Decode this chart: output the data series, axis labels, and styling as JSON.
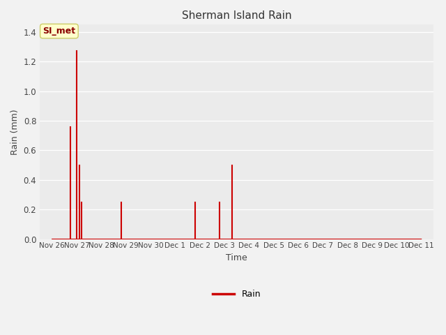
{
  "title": "Sherman Island Rain",
  "xlabel": "Time",
  "ylabel": "Rain (mm)",
  "legend_label": "Rain",
  "line_color": "#cc0000",
  "fig_bg_color": "#f2f2f2",
  "plot_bg_color": "#ebebeb",
  "ylim": [
    0,
    1.45
  ],
  "yticks": [
    0.0,
    0.2,
    0.4,
    0.6,
    0.8,
    1.0,
    1.2,
    1.4
  ],
  "xtick_labels": [
    "Nov 26",
    "Nov 27",
    "Nov 28",
    "Nov 29",
    "Nov 30",
    "Dec 1",
    "Dec 2",
    "Dec 3",
    "Dec 4",
    "Dec 5",
    "Dec 6",
    "Dec 7",
    "Dec 8",
    "Dec 9",
    "Dec 10",
    "Dec 11"
  ],
  "annotation_label": "SI_met",
  "annotation_color": "#8b0000",
  "annotation_bg": "#ffffcc",
  "annotation_edge": "#cccc66",
  "spike_data": [
    [
      0.75,
      0.76
    ],
    [
      1.0,
      1.27
    ],
    [
      1.1,
      0.5
    ],
    [
      1.2,
      0.25
    ],
    [
      2.8,
      0.25
    ],
    [
      5.8,
      0.25
    ],
    [
      6.8,
      0.25
    ],
    [
      7.3,
      0.5
    ]
  ]
}
